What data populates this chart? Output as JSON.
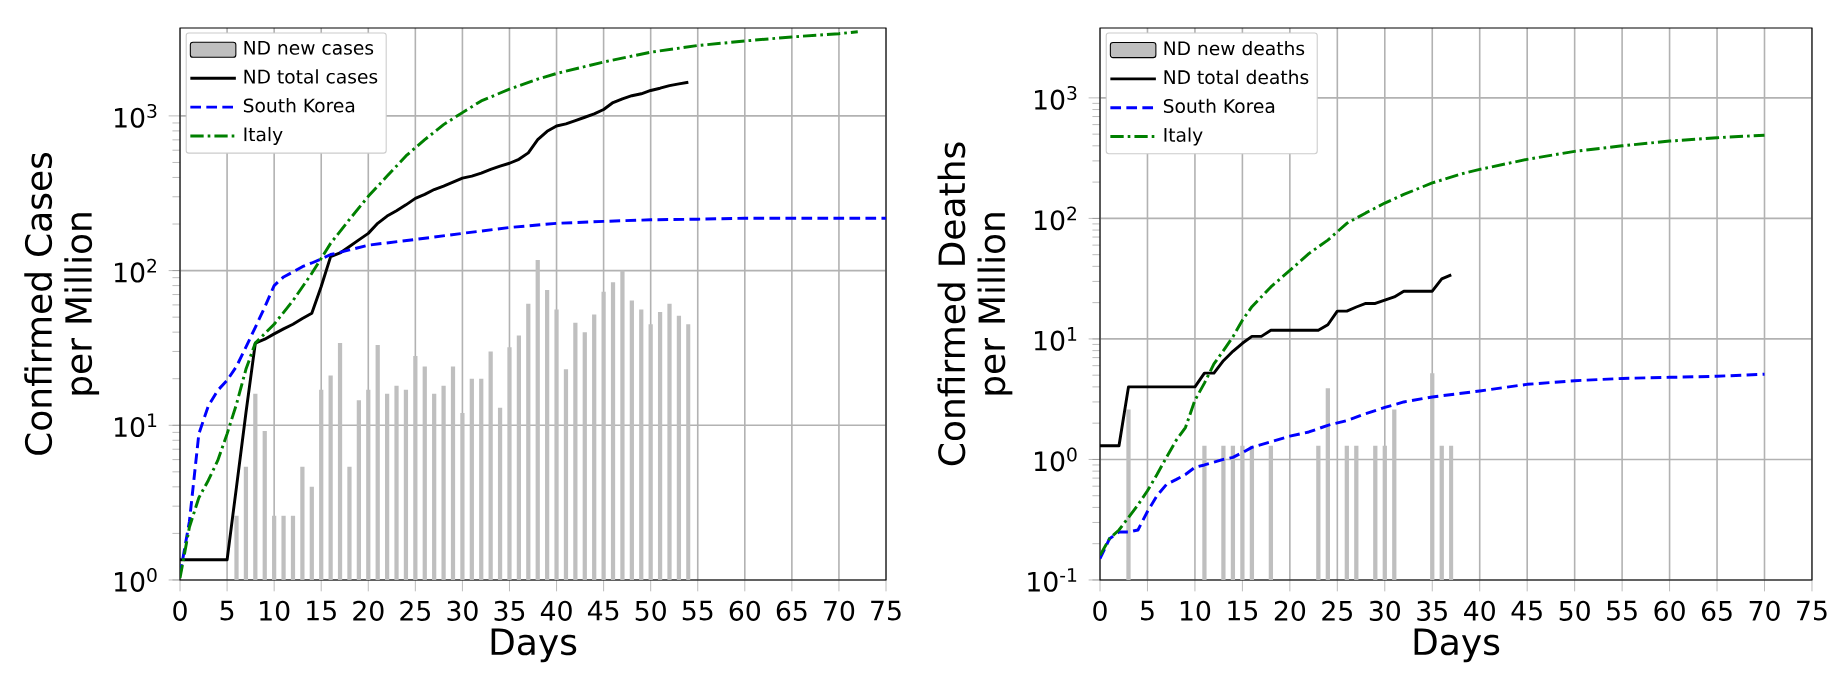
{
  "chart_data": [
    {
      "type": "line",
      "xlabel": "Days",
      "ylabel": "Confirmed Cases per Million",
      "log": "y",
      "grid": true,
      "legend": "top left",
      "xlim": [
        0,
        75
      ],
      "xticks": [
        0,
        5,
        10,
        15,
        20,
        25,
        30,
        35,
        40,
        45,
        50,
        55,
        60,
        65,
        70,
        75
      ],
      "ylim": [
        1,
        3700
      ],
      "yticks": [
        {
          "value": 1,
          "label": "10$^{0}$"
        },
        {
          "value": 10,
          "label": "10$^{1}$"
        },
        {
          "value": 100,
          "label": "10$^{2}$"
        },
        {
          "value": 1000,
          "label": "10$^{3}$"
        }
      ],
      "series": [
        {
          "name": "ND new cases",
          "type": "bar",
          "color": "#bfbfbf",
          "x": [
            6,
            7,
            8,
            9,
            10,
            11,
            12,
            13,
            14,
            15,
            16,
            17,
            18,
            19,
            20,
            21,
            22,
            23,
            24,
            25,
            26,
            27,
            28,
            29,
            30,
            31,
            32,
            33,
            34,
            35,
            36,
            37,
            38,
            39,
            40,
            41,
            42,
            43,
            44,
            45,
            46,
            47,
            48,
            49,
            50,
            51,
            52,
            53,
            54
          ],
          "values": [
            2.6,
            5.4,
            16,
            9.2,
            2.6,
            2.6,
            2.6,
            5.4,
            4,
            17,
            21,
            34,
            5.4,
            14.5,
            17,
            33,
            16,
            18,
            17,
            28,
            24,
            16,
            18,
            24,
            12,
            20,
            20,
            30,
            13,
            32,
            38,
            61,
            117,
            75,
            56,
            23,
            46,
            40,
            52,
            73,
            84,
            100,
            64,
            56,
            45,
            54,
            61,
            51,
            45
          ]
        },
        {
          "name": "ND total cases",
          "type": "line",
          "color": "#000000",
          "line_style": "solid",
          "x": [
            0,
            5,
            6,
            7,
            8,
            9,
            10,
            11,
            12,
            13,
            14,
            15,
            16,
            17,
            18,
            19,
            20,
            21,
            22,
            23,
            24,
            25,
            26,
            27,
            28,
            29,
            30,
            31,
            32,
            33,
            34,
            35,
            36,
            37,
            38,
            39,
            40,
            41,
            42,
            43,
            44,
            45,
            46,
            47,
            48,
            49,
            50,
            51,
            52,
            53,
            54
          ],
          "values": [
            1.35,
            1.35,
            4,
            12,
            34,
            36,
            39,
            42,
            45,
            49,
            53,
            79,
            123,
            130,
            143,
            158,
            174,
            202,
            225,
            244,
            266,
            293,
            311,
            334,
            352,
            373,
            396,
            408,
            427,
            451,
            474,
            494,
            524,
            577,
            702,
            795,
            861,
            888,
            933,
            980,
            1030,
            1100,
            1220,
            1290,
            1350,
            1390,
            1460,
            1510,
            1570,
            1610,
            1650
          ]
        },
        {
          "name": "South Korea",
          "type": "line",
          "color": "#0000ff",
          "line_style": "dashed",
          "x": [
            0,
            1,
            2,
            3,
            4,
            5,
            6,
            7,
            8,
            9,
            10,
            11,
            12,
            13,
            14,
            15,
            16,
            18,
            20,
            25,
            30,
            35,
            40,
            45,
            50,
            55,
            60,
            65,
            70,
            75
          ],
          "values": [
            1.08,
            2.4,
            8.8,
            13.3,
            16.8,
            19.5,
            24,
            32,
            43,
            58,
            80,
            91,
            98,
            106,
            112,
            119,
            127,
            136,
            146,
            159,
            174,
            190,
            202,
            208,
            213,
            215,
            218,
            218,
            218,
            218
          ]
        },
        {
          "name": "Italy",
          "type": "line",
          "color": "#008000",
          "line_style": "dashdot",
          "x": [
            0,
            1,
            2,
            3,
            4,
            5,
            6,
            7,
            8,
            10,
            12,
            14,
            16,
            18,
            20,
            22,
            24,
            26,
            28,
            30,
            32,
            35,
            38,
            40,
            45,
            50,
            55,
            60,
            65,
            70,
            72
          ],
          "values": [
            1.03,
            2.2,
            3.4,
            4.4,
            5.9,
            8.8,
            13.7,
            23,
            34,
            45,
            64,
            96,
            150,
            214,
            302,
            408,
            551,
            702,
            878,
            1050,
            1250,
            1490,
            1730,
            1880,
            2230,
            2580,
            2850,
            3050,
            3240,
            3400,
            3500
          ]
        }
      ]
    },
    {
      "type": "line",
      "xlabel": "Days",
      "ylabel": "Confirmed Deaths per Million",
      "log": "y",
      "grid": true,
      "legend": "top left",
      "xlim": [
        0,
        75
      ],
      "xticks": [
        0,
        5,
        10,
        15,
        20,
        25,
        30,
        35,
        40,
        45,
        50,
        55,
        60,
        65,
        70,
        75
      ],
      "ylim": [
        0.1,
        3800
      ],
      "yticks": [
        {
          "value": 0.1,
          "label": "10$^{-1}$"
        },
        {
          "value": 1,
          "label": "10$^{0}$"
        },
        {
          "value": 10,
          "label": "10$^{1}$"
        },
        {
          "value": 100,
          "label": "10$^{2}$"
        },
        {
          "value": 1000,
          "label": "10$^{3}$"
        }
      ],
      "series": [
        {
          "name": "ND new deaths",
          "type": "bar",
          "color": "#bfbfbf",
          "x": [
            3,
            11,
            13,
            14,
            15,
            16,
            18,
            23,
            24,
            26,
            27,
            29,
            30,
            31,
            35,
            36,
            37
          ],
          "values": [
            2.6,
            1.3,
            1.3,
            1.3,
            1.3,
            1.3,
            1.3,
            1.3,
            3.9,
            1.3,
            1.3,
            1.3,
            1.3,
            2.6,
            5.2,
            1.3,
            1.3
          ]
        },
        {
          "name": "ND total deaths",
          "type": "line",
          "color": "#000000",
          "line_style": "solid",
          "x": [
            0,
            2,
            3,
            10,
            11,
            12,
            13,
            14,
            15,
            16,
            17,
            18,
            23,
            24,
            25,
            26,
            27,
            28,
            29,
            30,
            31,
            32,
            35,
            36,
            37
          ],
          "values": [
            1.3,
            1.3,
            4,
            4,
            5.2,
            5.2,
            6.6,
            7.9,
            9.2,
            10.5,
            10.5,
            11.8,
            11.8,
            13.1,
            17,
            17,
            18.4,
            19.7,
            19.7,
            21,
            22.3,
            24.9,
            24.9,
            31.5,
            34
          ]
        },
        {
          "name": "South Korea",
          "type": "line",
          "color": "#0000ff",
          "line_style": "dashed",
          "x": [
            0,
            1,
            2,
            3,
            4,
            5,
            6,
            7,
            8,
            9,
            10,
            11,
            12,
            13,
            14,
            15,
            16,
            18,
            20,
            22,
            24,
            26,
            28,
            30,
            32,
            35,
            40,
            45,
            50,
            55,
            60,
            65,
            70
          ],
          "values": [
            0.15,
            0.22,
            0.25,
            0.25,
            0.26,
            0.37,
            0.5,
            0.62,
            0.68,
            0.75,
            0.86,
            0.9,
            0.95,
            1.0,
            1.04,
            1.14,
            1.26,
            1.4,
            1.56,
            1.69,
            1.92,
            2.1,
            2.4,
            2.7,
            3.0,
            3.3,
            3.7,
            4.2,
            4.5,
            4.7,
            4.8,
            4.9,
            5.1
          ]
        },
        {
          "name": "Italy",
          "type": "line",
          "color": "#008000",
          "line_style": "dashdot",
          "x": [
            0,
            1,
            2,
            3,
            4,
            5,
            6,
            7,
            8,
            9,
            10,
            11,
            12,
            13,
            14,
            15,
            16,
            18,
            20,
            22,
            24,
            26,
            28,
            30,
            32,
            35,
            38,
            40,
            45,
            50,
            55,
            60,
            65,
            70
          ],
          "values": [
            0.16,
            0.22,
            0.26,
            0.33,
            0.42,
            0.55,
            0.75,
            1.04,
            1.43,
            1.84,
            3.1,
            4.3,
            6.2,
            8.0,
            10.4,
            14.3,
            18.5,
            27,
            37,
            51,
            66,
            91,
            111,
            134,
            158,
            197,
            233,
            255,
            309,
            360,
            400,
            438,
            467,
            490
          ]
        }
      ]
    }
  ]
}
